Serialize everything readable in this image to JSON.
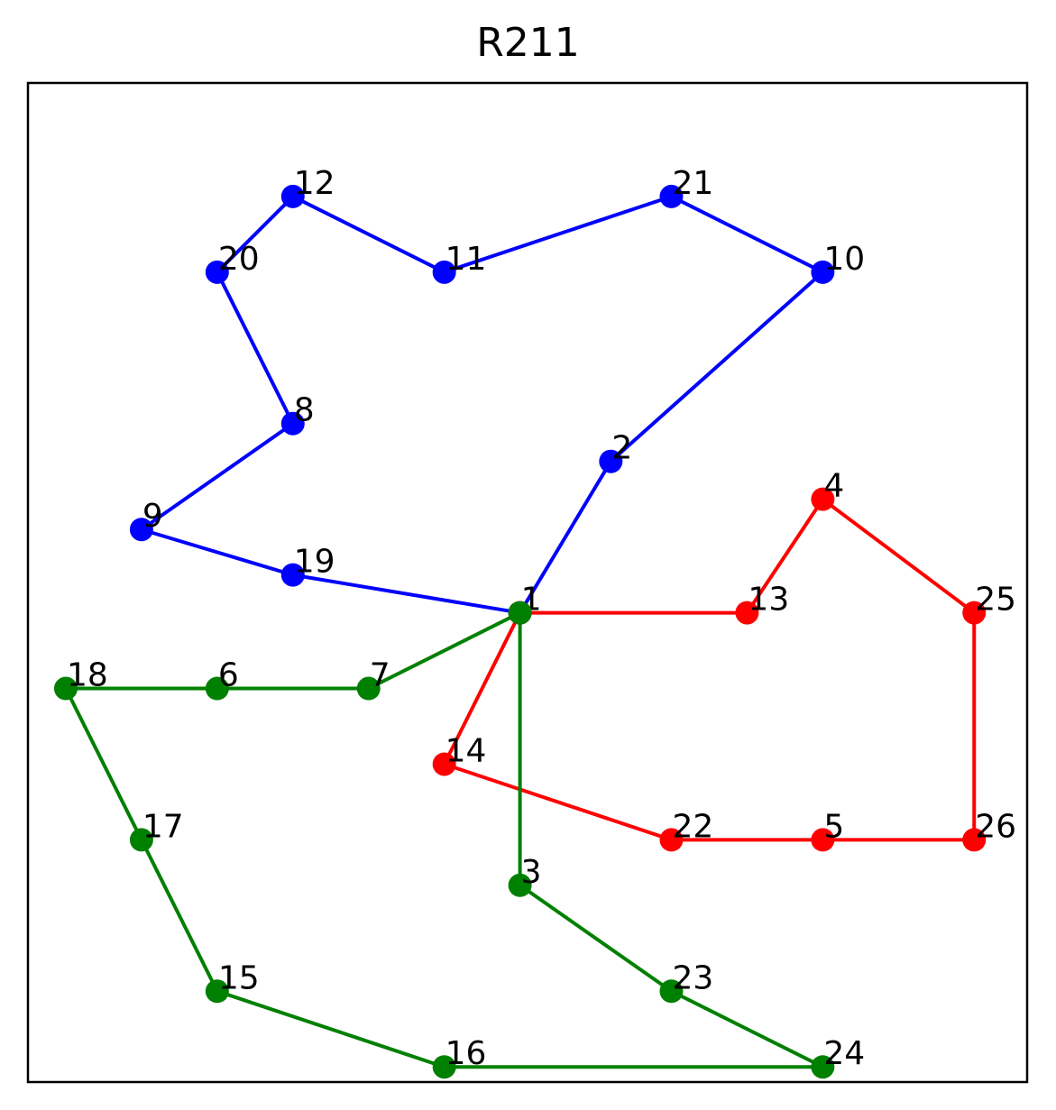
{
  "chart_data": {
    "type": "line",
    "title": "R211",
    "xlabel": "",
    "ylabel": "",
    "xlim": [
      0.5,
      13.7
    ],
    "ylim": [
      0.3,
      13.5
    ],
    "grid": false,
    "series": [
      {
        "color": "#0000ff",
        "route": [
          {
            "id": "1",
            "x": 7.0,
            "y": 6.5
          },
          {
            "id": "2",
            "x": 8.2,
            "y": 8.5
          },
          {
            "id": "10",
            "x": 11.0,
            "y": 11.0
          },
          {
            "id": "21",
            "x": 9.0,
            "y": 12.0
          },
          {
            "id": "11",
            "x": 6.0,
            "y": 11.0
          },
          {
            "id": "12",
            "x": 4.0,
            "y": 12.0
          },
          {
            "id": "20",
            "x": 3.0,
            "y": 11.0
          },
          {
            "id": "8",
            "x": 4.0,
            "y": 9.0
          },
          {
            "id": "9",
            "x": 2.0,
            "y": 7.6
          },
          {
            "id": "19",
            "x": 4.0,
            "y": 7.0
          },
          {
            "id": "1",
            "x": 7.0,
            "y": 6.5
          }
        ]
      },
      {
        "color": "#ff0000",
        "route": [
          {
            "id": "1",
            "x": 7.0,
            "y": 6.5
          },
          {
            "id": "13",
            "x": 10.0,
            "y": 6.5
          },
          {
            "id": "4",
            "x": 11.0,
            "y": 8.0
          },
          {
            "id": "25",
            "x": 13.0,
            "y": 6.5
          },
          {
            "id": "26",
            "x": 13.0,
            "y": 3.5
          },
          {
            "id": "5",
            "x": 11.0,
            "y": 3.5
          },
          {
            "id": "22",
            "x": 9.0,
            "y": 3.5
          },
          {
            "id": "14",
            "x": 6.0,
            "y": 4.5
          },
          {
            "id": "1",
            "x": 7.0,
            "y": 6.5
          }
        ]
      },
      {
        "color": "#008000",
        "route": [
          {
            "id": "1",
            "x": 7.0,
            "y": 6.5
          },
          {
            "id": "7",
            "x": 5.0,
            "y": 5.5
          },
          {
            "id": "6",
            "x": 3.0,
            "y": 5.5
          },
          {
            "id": "18",
            "x": 1.0,
            "y": 5.5
          },
          {
            "id": "17",
            "x": 2.0,
            "y": 3.5
          },
          {
            "id": "15",
            "x": 3.0,
            "y": 1.5
          },
          {
            "id": "16",
            "x": 6.0,
            "y": 0.5
          },
          {
            "id": "24",
            "x": 11.0,
            "y": 0.5
          },
          {
            "id": "23",
            "x": 9.0,
            "y": 1.5
          },
          {
            "id": "3",
            "x": 7.0,
            "y": 2.9
          },
          {
            "id": "1",
            "x": 7.0,
            "y": 6.5
          }
        ]
      }
    ]
  }
}
